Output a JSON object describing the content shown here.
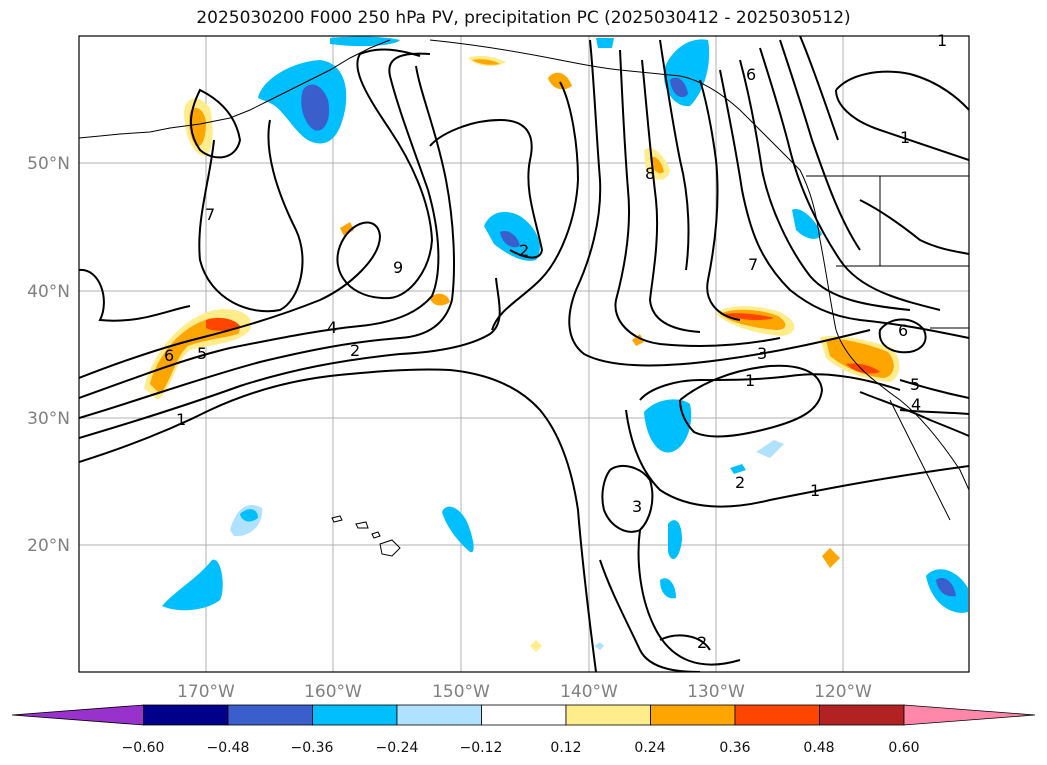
{
  "title": "2025030200 F000 250 hPa PV, precipitation PC (2025030412 - 2025030512)",
  "axes": {
    "lat_ticks": [
      "50°N",
      "40°N",
      "30°N",
      "20°N"
    ],
    "lon_ticks": [
      "170°W",
      "160°W",
      "150°W",
      "140°W",
      "130°W",
      "120°W"
    ]
  },
  "colorbar": {
    "levels": [
      "−0.60",
      "−0.48",
      "−0.36",
      "−0.24",
      "−0.12",
      "0.12",
      "0.24",
      "0.36",
      "0.48",
      "0.60"
    ],
    "colors": [
      "#9932cc",
      "#00008b",
      "#3a5fcd",
      "#00bfff",
      "#b0e2ff",
      "#ffffff",
      "#ffec8b",
      "#ffa500",
      "#ff4500",
      "#b22222",
      "#ff88aa"
    ]
  },
  "contour_labels": [
    "6",
    "5",
    "4",
    "2",
    "1",
    "7",
    "9",
    "2",
    "6",
    "8",
    "7",
    "3",
    "1",
    "6",
    "5",
    "4",
    "1",
    "3",
    "2",
    "2",
    "1",
    "1"
  ],
  "map_colors": {
    "contour": "#000000",
    "grid": "#b0b0b0",
    "coast": "#000000"
  }
}
